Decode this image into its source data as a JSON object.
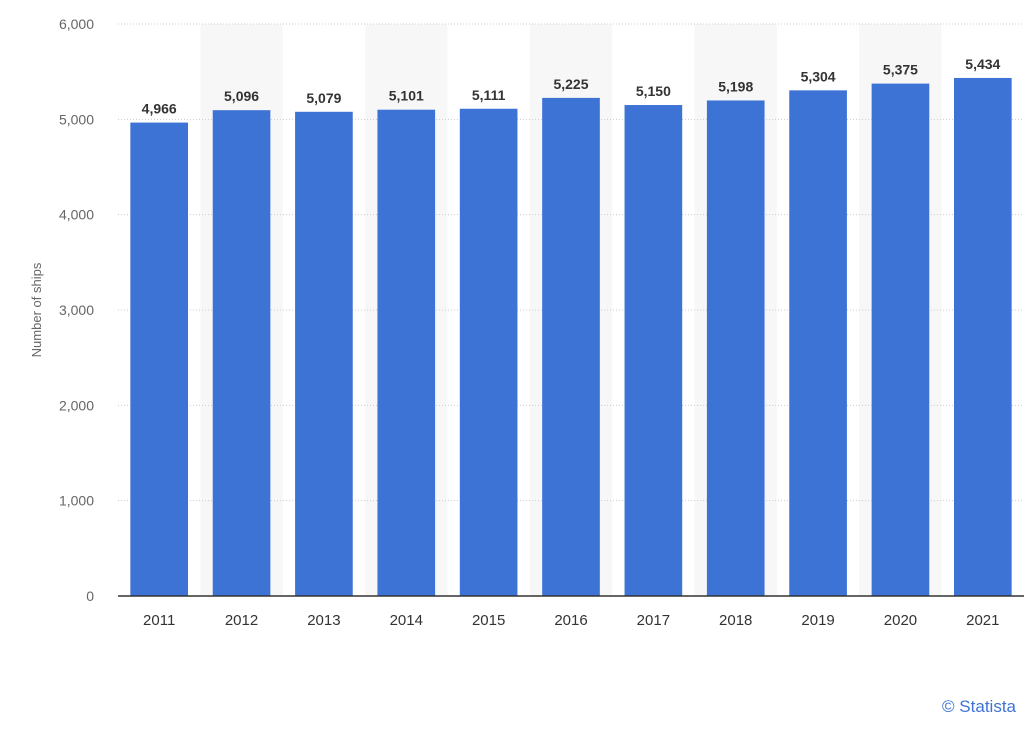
{
  "chart_data": {
    "type": "bar",
    "categories": [
      "2011",
      "2012",
      "2013",
      "2014",
      "2015",
      "2016",
      "2017",
      "2018",
      "2019",
      "2020",
      "2021"
    ],
    "values": [
      4966,
      5096,
      5079,
      5101,
      5111,
      5225,
      5150,
      5198,
      5304,
      5375,
      5434
    ],
    "value_labels": [
      "4,966",
      "5,096",
      "5,079",
      "5,101",
      "5,111",
      "5,225",
      "5,150",
      "5,198",
      "5,304",
      "5,375",
      "5,434"
    ],
    "ylabel": "Number of ships",
    "ylim": [
      0,
      6000
    ],
    "yticks": [
      0,
      1000,
      2000,
      3000,
      4000,
      5000,
      6000
    ],
    "ytick_labels": [
      "0",
      "1,000",
      "2,000",
      "3,000",
      "4,000",
      "5,000",
      "6,000"
    ],
    "grid": true,
    "bar_color": "#3e73d6",
    "alt_band_color": "#f7f7f7"
  },
  "credit": {
    "text": "© Statista",
    "color": "#3e73d6"
  }
}
